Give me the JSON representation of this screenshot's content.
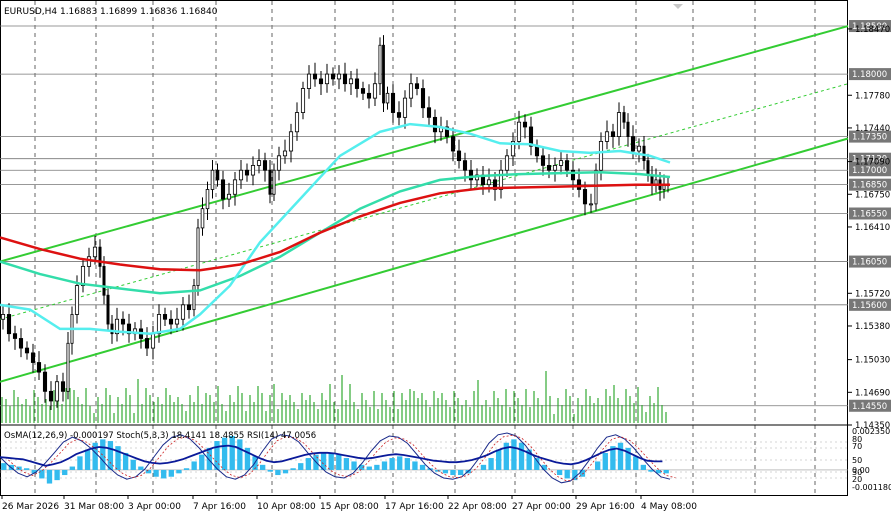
{
  "chart_data": {
    "type": "candlestick",
    "symbol_header": "EURUSD,H4  1.16883 1.16899 1.16836 1.16840",
    "indicator_header": "OsMA(12,26,9) -0.000197  Stoch(5,3,3) 18.4141 18.4855  RSI(14) 47.0056",
    "price_axis": {
      "min": 1.1435,
      "max": 1.1875,
      "ticks": [
        "1.18470",
        "1.17780",
        "1.17440",
        "1.17090",
        "1.16750",
        "1.16410",
        "1.15720",
        "1.15380",
        "1.15030",
        "1.14690",
        "1.14350"
      ]
    },
    "levels": [
      {
        "label": "1.18500",
        "price": 1.185
      },
      {
        "label": "1.18000",
        "price": 1.18
      },
      {
        "label": "1.17350",
        "price": 1.1735
      },
      {
        "label": "1.17120",
        "price": 1.1712
      },
      {
        "label": "1.17000",
        "price": 1.17
      },
      {
        "label": "1.16850",
        "price": 1.1685
      },
      {
        "label": "1.16550",
        "price": 1.1655
      },
      {
        "label": "1.16050",
        "price": 1.1605
      },
      {
        "label": "1.15600",
        "price": 1.156
      },
      {
        "label": "1.14550",
        "price": 1.1455
      }
    ],
    "x_axis_labels": [
      "26 Mar 2026",
      "31 Mar 08:00",
      "3 Apr 00:00",
      "7 Apr 16:00",
      "10 Apr 08:00",
      "15 Apr 08:00",
      "17 Apr 16:00",
      "22 Apr 08:00",
      "27 Apr 00:00",
      "29 Apr 16:00",
      "4 May 08:00"
    ],
    "indicator_axis_labels": [
      "0.002350",
      "80",
      "70",
      "50",
      "30",
      "0.00",
      "20",
      "-0.001180"
    ],
    "close_path": [
      [
        0,
        1.1545
      ],
      [
        6,
        1.155
      ],
      [
        12,
        1.153
      ],
      [
        18,
        1.1525
      ],
      [
        24,
        1.1515
      ],
      [
        30,
        1.151
      ],
      [
        36,
        1.15
      ],
      [
        42,
        1.149
      ],
      [
        48,
        1.147
      ],
      [
        54,
        1.146
      ],
      [
        60,
        1.148
      ],
      [
        66,
        1.147
      ],
      [
        70,
        1.152
      ],
      [
        74,
        1.155
      ],
      [
        80,
        1.158
      ],
      [
        86,
        1.16
      ],
      [
        92,
        1.161
      ],
      [
        98,
        1.162
      ],
      [
        102,
        1.16
      ],
      [
        106,
        1.157
      ],
      [
        110,
        1.154
      ],
      [
        114,
        1.153
      ],
      [
        120,
        1.1545
      ],
      [
        126,
        1.154
      ],
      [
        132,
        1.153
      ],
      [
        138,
        1.1535
      ],
      [
        144,
        1.1525
      ],
      [
        150,
        1.1515
      ],
      [
        156,
        1.153
      ],
      [
        162,
        1.155
      ],
      [
        168,
        1.1545
      ],
      [
        174,
        1.154
      ],
      [
        180,
        1.1545
      ],
      [
        186,
        1.156
      ],
      [
        192,
        1.1555
      ],
      [
        196,
        1.158
      ],
      [
        200,
        1.164
      ],
      [
        205,
        1.166
      ],
      [
        210,
        1.168
      ],
      [
        215,
        1.17
      ],
      [
        220,
        1.169
      ],
      [
        226,
        1.167
      ],
      [
        232,
        1.1675
      ],
      [
        238,
        1.169
      ],
      [
        244,
        1.17
      ],
      [
        250,
        1.1695
      ],
      [
        256,
        1.1705
      ],
      [
        262,
        1.171
      ],
      [
        268,
        1.17
      ],
      [
        272,
        1.1675
      ],
      [
        276,
        1.17
      ],
      [
        282,
        1.1715
      ],
      [
        288,
        1.172
      ],
      [
        294,
        1.174
      ],
      [
        300,
        1.176
      ],
      [
        306,
        1.1785
      ],
      [
        312,
        1.18
      ],
      [
        318,
        1.1795
      ],
      [
        324,
        1.179
      ],
      [
        330,
        1.18
      ],
      [
        336,
        1.1795
      ],
      [
        342,
        1.18
      ],
      [
        348,
        1.179
      ],
      [
        354,
        1.1795
      ],
      [
        360,
        1.1785
      ],
      [
        366,
        1.178
      ],
      [
        372,
        1.1775
      ],
      [
        378,
        1.179
      ],
      [
        382,
        1.183
      ],
      [
        385,
        1.177
      ],
      [
        390,
        1.178
      ],
      [
        396,
        1.176
      ],
      [
        402,
        1.1755
      ],
      [
        408,
        1.1775
      ],
      [
        414,
        1.179
      ],
      [
        420,
        1.1785
      ],
      [
        426,
        1.1765
      ],
      [
        432,
        1.1755
      ],
      [
        438,
        1.174
      ],
      [
        444,
        1.1745
      ],
      [
        450,
        1.1735
      ],
      [
        456,
        1.172
      ],
      [
        462,
        1.171
      ],
      [
        468,
        1.17
      ],
      [
        474,
        1.169
      ],
      [
        480,
        1.1695
      ],
      [
        486,
        1.1685
      ],
      [
        492,
        1.169
      ],
      [
        498,
        1.168
      ],
      [
        504,
        1.17
      ],
      [
        510,
        1.1715
      ],
      [
        516,
        1.173
      ],
      [
        522,
        1.175
      ],
      [
        528,
        1.1745
      ],
      [
        534,
        1.1725
      ],
      [
        540,
        1.1715
      ],
      [
        546,
        1.1705
      ],
      [
        552,
        1.17
      ],
      [
        558,
        1.1705
      ],
      [
        564,
        1.171
      ],
      [
        570,
        1.17
      ],
      [
        576,
        1.169
      ],
      [
        582,
        1.168
      ],
      [
        588,
        1.1665
      ],
      [
        594,
        1.1665
      ],
      [
        598,
        1.17
      ],
      [
        604,
        1.173
      ],
      [
        610,
        1.174
      ],
      [
        616,
        1.1735
      ],
      [
        622,
        1.176
      ],
      [
        626,
        1.175
      ],
      [
        630,
        1.1735
      ],
      [
        636,
        1.172
      ],
      [
        642,
        1.1725
      ],
      [
        646,
        1.171
      ],
      [
        650,
        1.1695
      ],
      [
        654,
        1.1685
      ],
      [
        658,
        1.169
      ],
      [
        662,
        1.168
      ],
      [
        666,
        1.1685
      ],
      [
        670,
        1.1684
      ]
    ],
    "ma_red": [
      [
        0,
        1.163
      ],
      [
        40,
        1.1618
      ],
      [
        80,
        1.1608
      ],
      [
        120,
        1.1602
      ],
      [
        160,
        1.1597
      ],
      [
        200,
        1.1596
      ],
      [
        240,
        1.1602
      ],
      [
        280,
        1.1615
      ],
      [
        320,
        1.1635
      ],
      [
        360,
        1.1652
      ],
      [
        400,
        1.1666
      ],
      [
        440,
        1.1676
      ],
      [
        480,
        1.1681
      ],
      [
        520,
        1.1682
      ],
      [
        560,
        1.1683
      ],
      [
        600,
        1.1684
      ],
      [
        640,
        1.1685
      ],
      [
        670,
        1.1685
      ]
    ],
    "ma_mint": [
      [
        0,
        1.1605
      ],
      [
        40,
        1.1592
      ],
      [
        80,
        1.1582
      ],
      [
        120,
        1.1577
      ],
      [
        160,
        1.1572
      ],
      [
        200,
        1.1575
      ],
      [
        240,
        1.159
      ],
      [
        280,
        1.161
      ],
      [
        320,
        1.1635
      ],
      [
        360,
        1.166
      ],
      [
        400,
        1.1678
      ],
      [
        440,
        1.169
      ],
      [
        480,
        1.1694
      ],
      [
        520,
        1.1696
      ],
      [
        560,
        1.1697
      ],
      [
        600,
        1.1698
      ],
      [
        640,
        1.1696
      ],
      [
        670,
        1.1693
      ]
    ],
    "ma_cyan": [
      [
        0,
        1.156
      ],
      [
        30,
        1.1555
      ],
      [
        60,
        1.1535
      ],
      [
        90,
        1.1535
      ],
      [
        120,
        1.1532
      ],
      [
        150,
        1.153
      ],
      [
        180,
        1.1535
      ],
      [
        200,
        1.155
      ],
      [
        230,
        1.158
      ],
      [
        260,
        1.1625
      ],
      [
        300,
        1.167
      ],
      [
        340,
        1.1715
      ],
      [
        380,
        1.174
      ],
      [
        410,
        1.1748
      ],
      [
        440,
        1.1745
      ],
      [
        470,
        1.1738
      ],
      [
        500,
        1.1728
      ],
      [
        530,
        1.1727
      ],
      [
        560,
        1.172
      ],
      [
        590,
        1.1718
      ],
      [
        620,
        1.172
      ],
      [
        650,
        1.1715
      ],
      [
        670,
        1.1708
      ]
    ],
    "channel_upper": [
      [
        0,
        1.1605
      ],
      [
        848,
        1.185
      ]
    ],
    "channel_lower": [
      [
        0,
        1.148
      ],
      [
        848,
        1.1733
      ]
    ],
    "channel_mid": [
      [
        0,
        1.1545
      ],
      [
        848,
        1.179
      ]
    ],
    "osma": [
      0.0004,
      0.0003,
      0.0002,
      0.0001,
      -0.0002,
      -0.0005,
      -0.0008,
      -0.0006,
      -0.0003,
      0.0002,
      0.0008,
      0.0012,
      0.0016,
      0.0018,
      0.0017,
      0.0014,
      0.001,
      0.0006,
      0.0002,
      -0.0002,
      -0.0004,
      -0.0005,
      -0.0004,
      -0.0002,
      0.0001,
      0.0005,
      0.0009,
      0.0013,
      0.0017,
      0.0019,
      0.002,
      0.0018,
      0.0013,
      0.0008,
      0.0003,
      -0.0001,
      -0.0003,
      -0.0002,
      0.0001,
      0.0004,
      0.0007,
      0.0009,
      0.001,
      0.001,
      0.0009,
      0.0007,
      0.0005,
      0.0003,
      0.0002,
      0.0003,
      0.0005,
      0.0007,
      0.0008,
      0.0007,
      0.0005,
      0.0003,
      0.0001,
      -0.0001,
      -0.0002,
      -0.0003,
      -0.0003,
      -0.0002,
      0.0,
      0.0003,
      0.0007,
      0.0012,
      0.0016,
      0.0018,
      0.0016,
      0.0012,
      0.0007,
      0.0003,
      0.0,
      -0.0003,
      -0.0005,
      -0.0006,
      -0.0004,
      0.0,
      0.0005,
      0.001,
      0.0014,
      0.0016,
      0.0013,
      0.0008,
      0.0003,
      -0.0001,
      -0.0002,
      -0.0002
    ],
    "stoch_main": [
      55,
      40,
      28,
      22,
      30,
      45,
      62,
      80,
      88,
      82,
      70,
      55,
      38,
      25,
      18,
      22,
      35,
      55,
      75,
      88,
      92,
      85,
      70,
      52,
      35,
      22,
      18,
      25,
      42,
      65,
      85,
      92,
      90,
      80,
      62,
      45,
      30,
      22,
      20,
      28,
      45,
      65,
      82,
      90,
      88,
      78,
      60,
      42,
      28,
      20,
      18,
      22,
      35,
      55,
      78,
      92,
      95,
      90,
      75,
      55,
      35,
      20,
      12,
      15,
      28,
      48,
      70,
      88,
      92,
      85,
      70,
      52,
      35,
      22,
      18
    ]
  }
}
